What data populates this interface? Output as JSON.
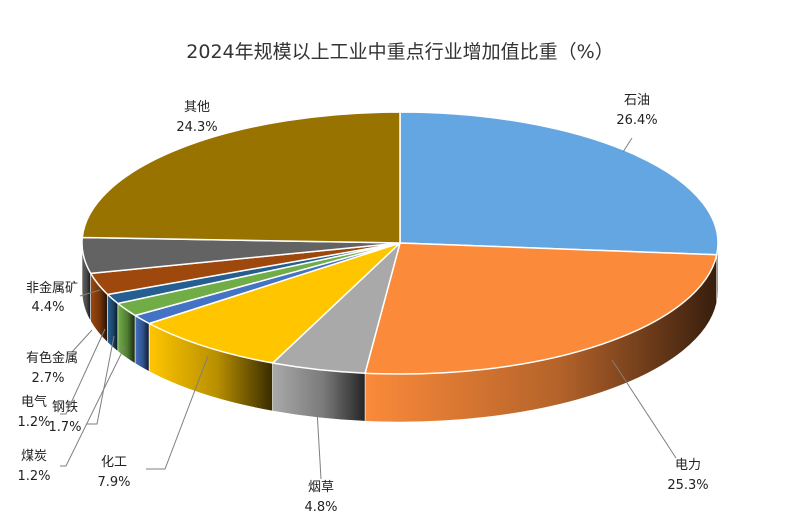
{
  "chart_data": {
    "type": "pie",
    "title": "2024年规模以上工业中重点行业增加值比重（%）",
    "slices": [
      {
        "name": "石油",
        "value": 26.4,
        "label": "26.4%",
        "color": "#64A6E2"
      },
      {
        "name": "电力",
        "value": 25.3,
        "label": "25.3%",
        "color": "#FB8A3A"
      },
      {
        "name": "烟草",
        "value": 4.8,
        "label": "4.8%",
        "color": "#A9A9A9"
      },
      {
        "name": "化工",
        "value": 7.9,
        "label": "7.9%",
        "color": "#FFC600"
      },
      {
        "name": "煤炭",
        "value": 1.2,
        "label": "1.2%",
        "color": "#4472C4"
      },
      {
        "name": "钢铁",
        "value": 1.7,
        "label": "1.7%",
        "color": "#70AD47"
      },
      {
        "name": "电气",
        "value": 1.2,
        "label": "1.2%",
        "color": "#255E91"
      },
      {
        "name": "有色金属",
        "value": 2.7,
        "label": "2.7%",
        "color": "#9E480E"
      },
      {
        "name": "非金属矿",
        "value": 4.4,
        "label": "4.4%",
        "color": "#636363"
      },
      {
        "name": "其他",
        "value": 24.3,
        "label": "24.3%",
        "color": "#997300"
      }
    ],
    "legend": "none",
    "style": "3d-exploded-none"
  }
}
